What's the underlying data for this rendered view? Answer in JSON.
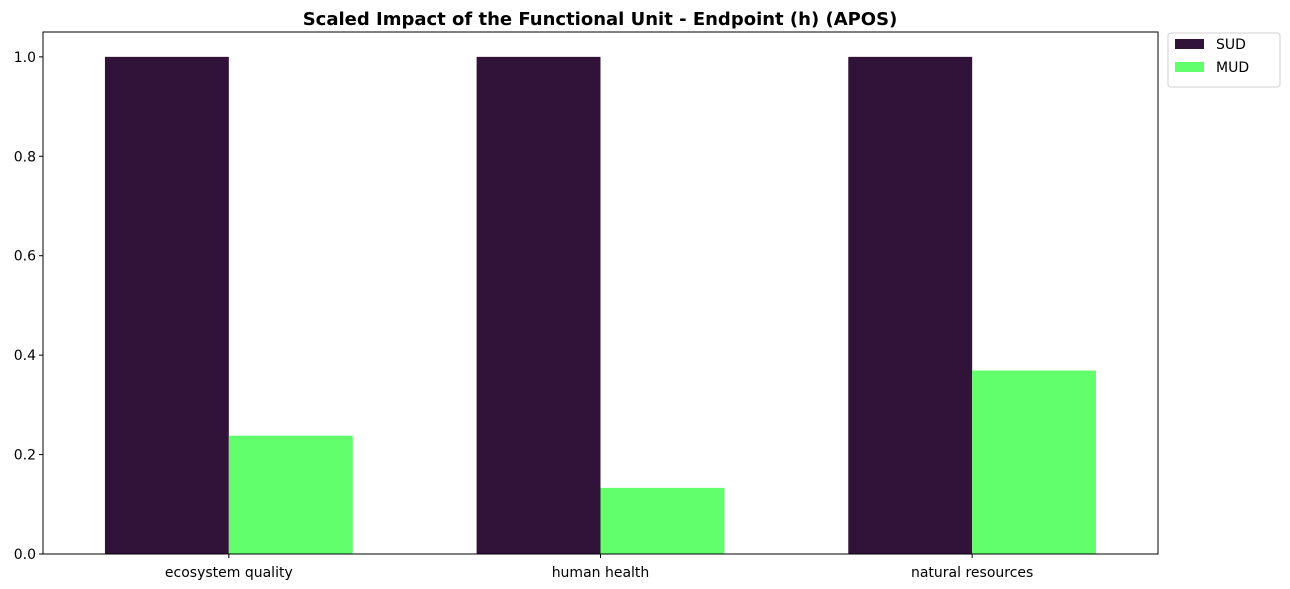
{
  "chart_data": {
    "type": "bar",
    "title": "Scaled Impact of the Functional Unit - Endpoint (h) (APOS)",
    "xlabel": "",
    "ylabel": "",
    "categories": [
      "ecosystem quality",
      "human health",
      "natural resources"
    ],
    "series": [
      {
        "name": "SUD",
        "color": "#311339",
        "values": [
          1.0,
          1.0,
          1.0
        ]
      },
      {
        "name": "MUD",
        "color": "#62ff6c",
        "values": [
          0.238,
          0.133,
          0.369
        ]
      }
    ],
    "ylim": [
      0,
      1.05
    ],
    "yticks": [
      "0.0",
      "0.2",
      "0.4",
      "0.6",
      "0.8",
      "1.0"
    ],
    "grid": false,
    "legend": "outside-top-right"
  }
}
